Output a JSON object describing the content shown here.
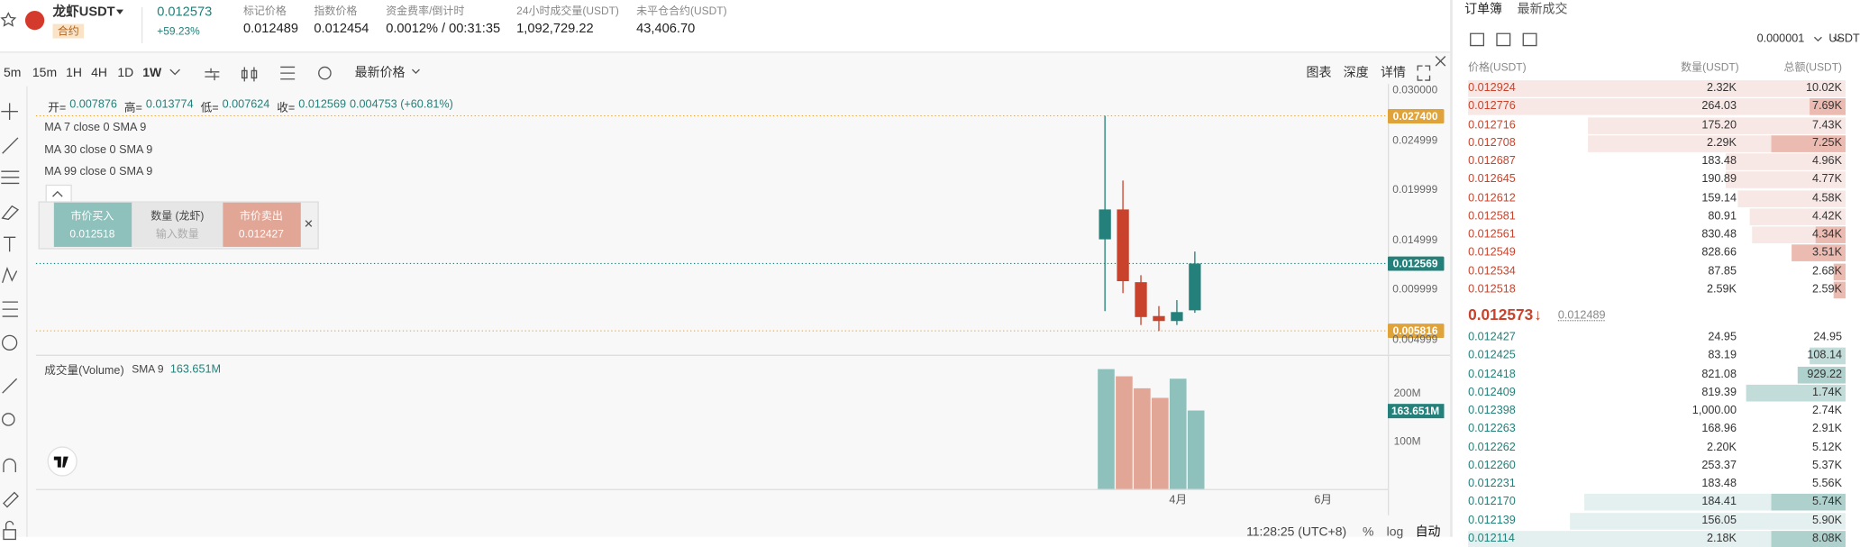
{
  "header": {
    "symbol": "龙虾USDT",
    "tag": "合约",
    "last_price": "0.012573",
    "change": "+59.23%",
    "stats": [
      {
        "label": "标记价格",
        "value": "0.012489"
      },
      {
        "label": "指数价格",
        "value": "0.012454"
      },
      {
        "label": "资金费率/倒计时",
        "value": "0.0012% / 00:31:35"
      },
      {
        "label": "24小时成交量(USDT)",
        "value": "1,092,729.22"
      },
      {
        "label": "未平仓合约(USDT)",
        "value": "43,406.70"
      }
    ]
  },
  "toolbar": {
    "intervals": [
      "5m",
      "15m",
      "1H",
      "4H",
      "1D",
      "1W"
    ],
    "price_type": "最新价格",
    "views": [
      "图表",
      "深度",
      "详情"
    ]
  },
  "legend": {
    "ohlc": [
      {
        "label": "开=",
        "value": "0.007876"
      },
      {
        "label": "高=",
        "value": "0.013774"
      },
      {
        "label": "低=",
        "value": "0.007624"
      },
      {
        "label": "收=",
        "value": "0.012569"
      }
    ],
    "change": "0.004753 (+60.81%)",
    "indicators": [
      "MA 7 close 0 SMA 9",
      "MA 30 close 0 SMA 9",
      "MA 99 close 0 SMA 9"
    ]
  },
  "trade_widget": {
    "buy": {
      "label": "市价买入",
      "price": "0.012518"
    },
    "quantity": {
      "label": "数量 (龙虾)",
      "placeholder": "输入数量"
    },
    "sell": {
      "label": "市价卖出",
      "price": "0.012427"
    }
  },
  "price_chart": {
    "type": "candlestick",
    "up_color": "#23807a",
    "down_color": "#c9432c",
    "candles": [
      {
        "open": 0.015,
        "high": 0.0274,
        "low": 0.0078,
        "close": 0.018
      },
      {
        "open": 0.018,
        "high": 0.0209,
        "low": 0.0096,
        "close": 0.0108
      },
      {
        "open": 0.0107,
        "high": 0.0114,
        "low": 0.0064,
        "close": 0.0072
      },
      {
        "open": 0.0073,
        "high": 0.0083,
        "low": 0.0058,
        "close": 0.0068
      },
      {
        "open": 0.0068,
        "high": 0.0089,
        "low": 0.0064,
        "close": 0.0077
      },
      {
        "open": 0.007876,
        "high": 0.013774,
        "low": 0.007624,
        "close": 0.012569
      }
    ],
    "ylim": [
      0.0039,
      0.0306
    ],
    "yticks": [
      {
        "value": 0.03,
        "label": "0.030000"
      },
      {
        "value": 0.024999,
        "label": "0.024999"
      },
      {
        "value": 0.019999,
        "label": "0.019999"
      },
      {
        "value": 0.014999,
        "label": "0.014999"
      },
      {
        "value": 0.009999,
        "label": "0.009999"
      },
      {
        "value": 0.004999,
        "label": "0.004999"
      }
    ],
    "markers": [
      {
        "value": 0.0274,
        "label": "0.027400",
        "color": "#e0a33a"
      },
      {
        "value": 0.012569,
        "label": "0.012569",
        "color": "#23807a"
      },
      {
        "value": 0.005816,
        "label": "0.005816",
        "color": "#e0a33a"
      }
    ]
  },
  "volume_chart": {
    "type": "bar",
    "title": "成交量(Volume)",
    "indicator": "SMA 9",
    "indicator_value": "163.651M",
    "values": [
      250,
      235,
      210,
      190,
      230,
      163.651
    ],
    "colors": [
      "#8fc1bc",
      "#e2a696",
      "#e2a696",
      "#e2a696",
      "#8fc1bc",
      "#8fc1bc"
    ],
    "ylim": [
      0,
      275
    ],
    "yticks": [
      {
        "value": 200,
        "label": "200M"
      },
      {
        "value": 100,
        "label": "100M"
      }
    ],
    "marker": {
      "value": 163.651,
      "label": "163.651M",
      "color": "#23807a"
    }
  },
  "time_axis": [
    "4月",
    "6月"
  ],
  "status_bar": {
    "time": "11:28:25 (UTC+8)",
    "options": [
      "%",
      "log",
      "自动"
    ]
  },
  "order_book": {
    "tabs": [
      "订单簿",
      "最新成交"
    ],
    "precision": "0.000001",
    "unit": "USDT",
    "headers": [
      "价格(USDT)",
      "数量(USDT)",
      "总额(USDT)"
    ],
    "asks": [
      [
        "0.012924",
        "2.32K",
        "10.02K"
      ],
      [
        "0.012776",
        "264.03",
        "7.69K"
      ],
      [
        "0.012716",
        "175.20",
        "7.43K"
      ],
      [
        "0.012708",
        "2.29K",
        "7.25K"
      ],
      [
        "0.012687",
        "183.48",
        "4.96K"
      ],
      [
        "0.012645",
        "190.89",
        "4.77K"
      ],
      [
        "0.012612",
        "159.14",
        "4.58K"
      ],
      [
        "0.012581",
        "80.91",
        "4.42K"
      ],
      [
        "0.012561",
        "830.48",
        "4.34K"
      ],
      [
        "0.012549",
        "828.66",
        "3.51K"
      ],
      [
        "0.012534",
        "87.85",
        "2.68K"
      ],
      [
        "0.012518",
        "2.59K",
        "2.59K"
      ]
    ],
    "mid_price": "0.012573",
    "mid_arrow": "↓",
    "mark_price": "0.012489",
    "bids": [
      [
        "0.012427",
        "24.95",
        "24.95"
      ],
      [
        "0.012425",
        "83.19",
        "108.14"
      ],
      [
        "0.012418",
        "821.08",
        "929.22"
      ],
      [
        "0.012409",
        "819.39",
        "1.74K"
      ],
      [
        "0.012398",
        "1,000.00",
        "2.74K"
      ],
      [
        "0.012263",
        "168.96",
        "2.91K"
      ],
      [
        "0.012262",
        "2.20K",
        "5.12K"
      ],
      [
        "0.012260",
        "253.37",
        "5.37K"
      ],
      [
        "0.012231",
        "183.48",
        "5.56K"
      ],
      [
        "0.012170",
        "184.41",
        "5.74K"
      ],
      [
        "0.012139",
        "156.05",
        "5.90K"
      ],
      [
        "0.012114",
        "2.18K",
        "8.08K"
      ]
    ]
  }
}
